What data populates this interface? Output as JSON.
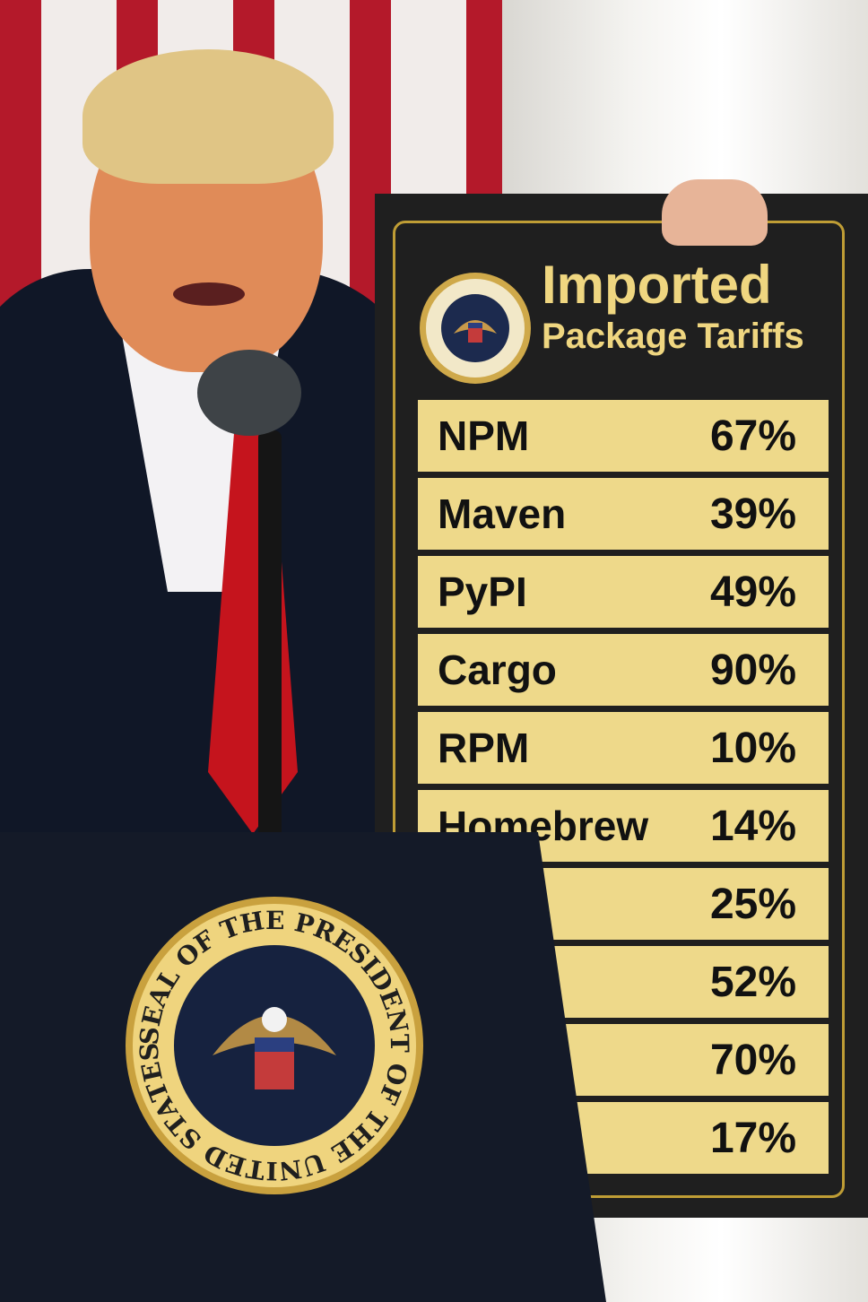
{
  "sign": {
    "title_line1": "Imported",
    "title_line2": "Package Tariffs",
    "seal_text": "SEAL OF THE PRESIDENT OF THE UNITED STATES",
    "rows": [
      {
        "name": "NPM",
        "rate": "67%"
      },
      {
        "name": "Maven",
        "rate": "39%"
      },
      {
        "name": "PyPI",
        "rate": "49%"
      },
      {
        "name": "Cargo",
        "rate": "90%"
      },
      {
        "name": "RPM",
        "rate": "10%"
      },
      {
        "name": "Homebrew",
        "rate": "14%"
      },
      {
        "name": "",
        "rate": "25%"
      },
      {
        "name": "",
        "rate": "52%"
      },
      {
        "name": "",
        "rate": "70%"
      },
      {
        "name": "",
        "rate": "17%"
      }
    ]
  },
  "podium": {
    "seal_text": "SEAL OF THE PRESIDENT OF THE UNITED STATES"
  },
  "colors": {
    "sign_background": "#1f1f1f",
    "sign_gold": "#bf9d35",
    "cell_fill": "#eed98a",
    "podium": "#141a28",
    "tie_red": "#c5141d"
  }
}
